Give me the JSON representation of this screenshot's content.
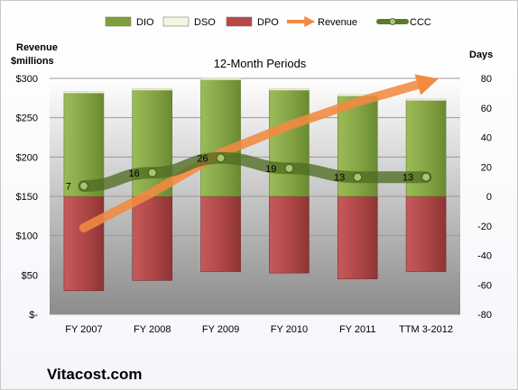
{
  "chart_data": {
    "type": "bar",
    "title": "12-Month Periods",
    "left_axis_label_line1": "Revenue",
    "left_axis_label_line2": "$millions",
    "right_axis_label": "Days",
    "brand": "Vitacost.com",
    "categories": [
      "FY 2007",
      "FY 2008",
      "FY 2009",
      "FY 2010",
      "FY 2011",
      "TTM 3-2012"
    ],
    "left_axis": {
      "min": 0,
      "max": 300,
      "step": 50,
      "tick_labels": [
        "$-",
        "$50",
        "$100",
        "$150",
        "$200",
        "$250",
        "$300"
      ]
    },
    "right_axis": {
      "min": -80,
      "max": 80,
      "step": 20,
      "tick_labels": [
        "-80",
        "-60",
        "-40",
        "-20",
        "0",
        "20",
        "40",
        "60",
        "80"
      ]
    },
    "grid": true,
    "legend_position": "top",
    "legend": [
      {
        "key": "DIO",
        "label": "DIO",
        "kind": "bar",
        "color": "#7f9f3c"
      },
      {
        "key": "DSO",
        "label": "DSO",
        "kind": "bar",
        "color": "#f3f6e0"
      },
      {
        "key": "DPO",
        "label": "DPO",
        "kind": "bar",
        "color": "#b84848"
      },
      {
        "key": "Revenue",
        "label": "Revenue",
        "kind": "arrow",
        "color": "#f28a40"
      },
      {
        "key": "CCC",
        "label": "CCC",
        "kind": "line",
        "color": "#5a7a2a"
      }
    ],
    "series": [
      {
        "name": "DIO",
        "values": [
          70,
          72,
          79,
          72,
          68,
          65
        ]
      },
      {
        "name": "DSO",
        "values": [
          1,
          1,
          1,
          1,
          1,
          1
        ]
      },
      {
        "name": "DPO",
        "values": [
          -64,
          -57,
          -51,
          -52,
          -56,
          -51
        ]
      },
      {
        "name": "CCC",
        "values": [
          7,
          16,
          26,
          19,
          13,
          13
        ],
        "labels": [
          "7",
          "16",
          "26",
          "19",
          "13",
          "13"
        ]
      },
      {
        "name": "Revenue",
        "values": [
          110,
          155,
          205,
          240,
          270,
          295
        ]
      }
    ]
  }
}
